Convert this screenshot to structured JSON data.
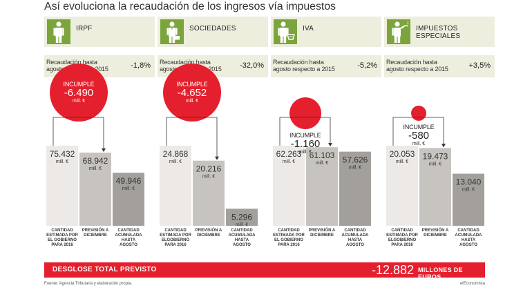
{
  "title": "Así evoluciona la recaudación de los ingresos vía impuestos",
  "chart_data": [
    {
      "type": "bar",
      "name": "IRPF",
      "rec_label": "Recaudación hasta\nagosto respecto a 2015",
      "rec_value": "-1,8%",
      "incumple_title": "INCUMPLE",
      "incumple_value": "-6.490",
      "incumple_unit": "mill. €",
      "categories": [
        "CANTIDAD\nESTIMADA POR\nEL GOBIERNO\nPARA 2016",
        "PREVISIÓN A\nDICIEMBRE",
        "CANTIDAD\nACUMULADA\nHASTA\nAGOSTO"
      ],
      "values": [
        75432,
        68942,
        49946
      ],
      "value_labels": [
        "75.432",
        "68.942",
        "49.946"
      ],
      "unit": "mill. €",
      "icon": "person-icon",
      "white_text_in_circle": true
    },
    {
      "type": "bar",
      "name": "SOCIEDADES",
      "rec_label": "Recaudación hasta\nagosto respecto a 2015",
      "rec_value": "-32,0%",
      "incumple_title": "INCUMPLE",
      "incumple_value": "-4.652",
      "incumple_unit": "mill. €",
      "categories": [
        "CANTIDAD\nESTIMADA POR\nELGOBIERNO\nPARA 2016",
        "PREVISIÓN A\nDICIEMBRE",
        "CANTIDAD\nACUMULADA\nHASTA\nAGOSTO"
      ],
      "values": [
        24868,
        20216,
        5296
      ],
      "value_labels": [
        "24.868",
        "20.216",
        "5.296"
      ],
      "unit": "mill. €",
      "icon": "businessman-briefcase-icon",
      "white_text_in_circle": true
    },
    {
      "type": "bar",
      "name": "IVA",
      "rec_label": "Recaudación hasta\nagosto respecto a 2015",
      "rec_value": "-5,2%",
      "incumple_title": "INCUMPLE",
      "incumple_value": "-1.160",
      "incumple_unit": "mill. €",
      "categories": [
        "CANTIDAD\nESTIMADA POR\nEL GOBIERNO\nPARA 2016",
        "PREVISIÓN A\nDICIEMBRE",
        "CANTIDAD\nACUMULADA\nHASTA\nAGOSTO"
      ],
      "values": [
        62263,
        61103,
        57626
      ],
      "value_labels": [
        "62.263",
        "61.103",
        "57.626"
      ],
      "unit": "mill. €",
      "icon": "shopper-basket-icon",
      "white_text_in_circle": false
    },
    {
      "type": "bar",
      "name": "IMPUESTOS\nESPECIALES",
      "rec_label": "Recaudación hasta\nagosto respecto a 2015",
      "rec_value": "+3,5%",
      "incumple_title": "INCUMPLE",
      "incumple_value": "-580",
      "incumple_unit": "mill. €",
      "categories": [
        "CANTIDAD\nESTIMADA POR\nELGOBIERNO\nPARA 2016",
        "PREVISIÓN A\nDICIEMBRE",
        "CANTIDAD\nACUMULADA\nHASTA\nAGOSTO"
      ],
      "values": [
        20053,
        19473,
        13040
      ],
      "value_labels": [
        "20.053",
        "19.473",
        "13.040"
      ],
      "unit": "mill. €",
      "icon": "smoker-icon",
      "white_text_in_circle": false
    }
  ],
  "colors": {
    "accent_red": "#e4202e",
    "bar1": "#ece9e6",
    "bar2": "#c7c4c0",
    "bar3": "#a3a09c",
    "header_bg": "#eeeede",
    "icon_green": "#7ba43c"
  },
  "total": {
    "label": "DESGLOSE TOTAL PREVISTO",
    "value": "-12.882",
    "unit": "MILLONES DE EUROS"
  },
  "source": "Fuente: Agencia Tributaria y elaboración propia.",
  "credit": "elEconomista"
}
